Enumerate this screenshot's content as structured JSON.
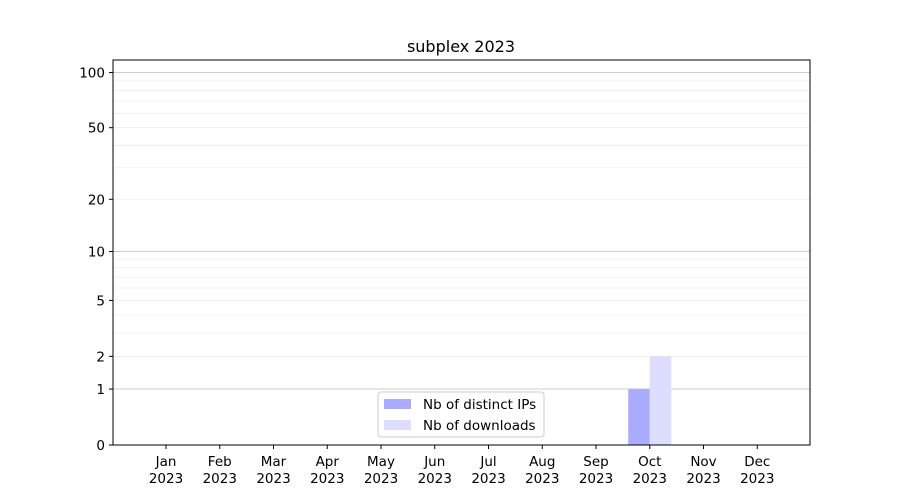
{
  "chart_data": {
    "type": "bar",
    "title": "subplex 2023",
    "xlabel": "",
    "ylabel": "",
    "y_scale": "log(1+y)",
    "ylim": [
      0,
      117
    ],
    "yticks": [
      0,
      1,
      2,
      5,
      10,
      20,
      50,
      100
    ],
    "y_minor_ticks": [
      3,
      4,
      6,
      7,
      8,
      9,
      30,
      40,
      60,
      70,
      80,
      90
    ],
    "grid": true,
    "legend_position": "bottom-center",
    "categories": [
      "Jan\n2023",
      "Feb\n2023",
      "Mar\n2023",
      "Apr\n2023",
      "May\n2023",
      "Jun\n2023",
      "Jul\n2023",
      "Aug\n2023",
      "Sep\n2023",
      "Oct\n2023",
      "Nov\n2023",
      "Dec\n2023"
    ],
    "series": [
      {
        "name": "Nb of distinct IPs",
        "color": "#aaaaff",
        "values": [
          0,
          0,
          0,
          0,
          0,
          0,
          0,
          0,
          0,
          1,
          0,
          0
        ]
      },
      {
        "name": "Nb of downloads",
        "color": "#ddddff",
        "values": [
          0,
          0,
          0,
          0,
          0,
          0,
          0,
          0,
          0,
          2,
          0,
          0
        ]
      }
    ]
  }
}
